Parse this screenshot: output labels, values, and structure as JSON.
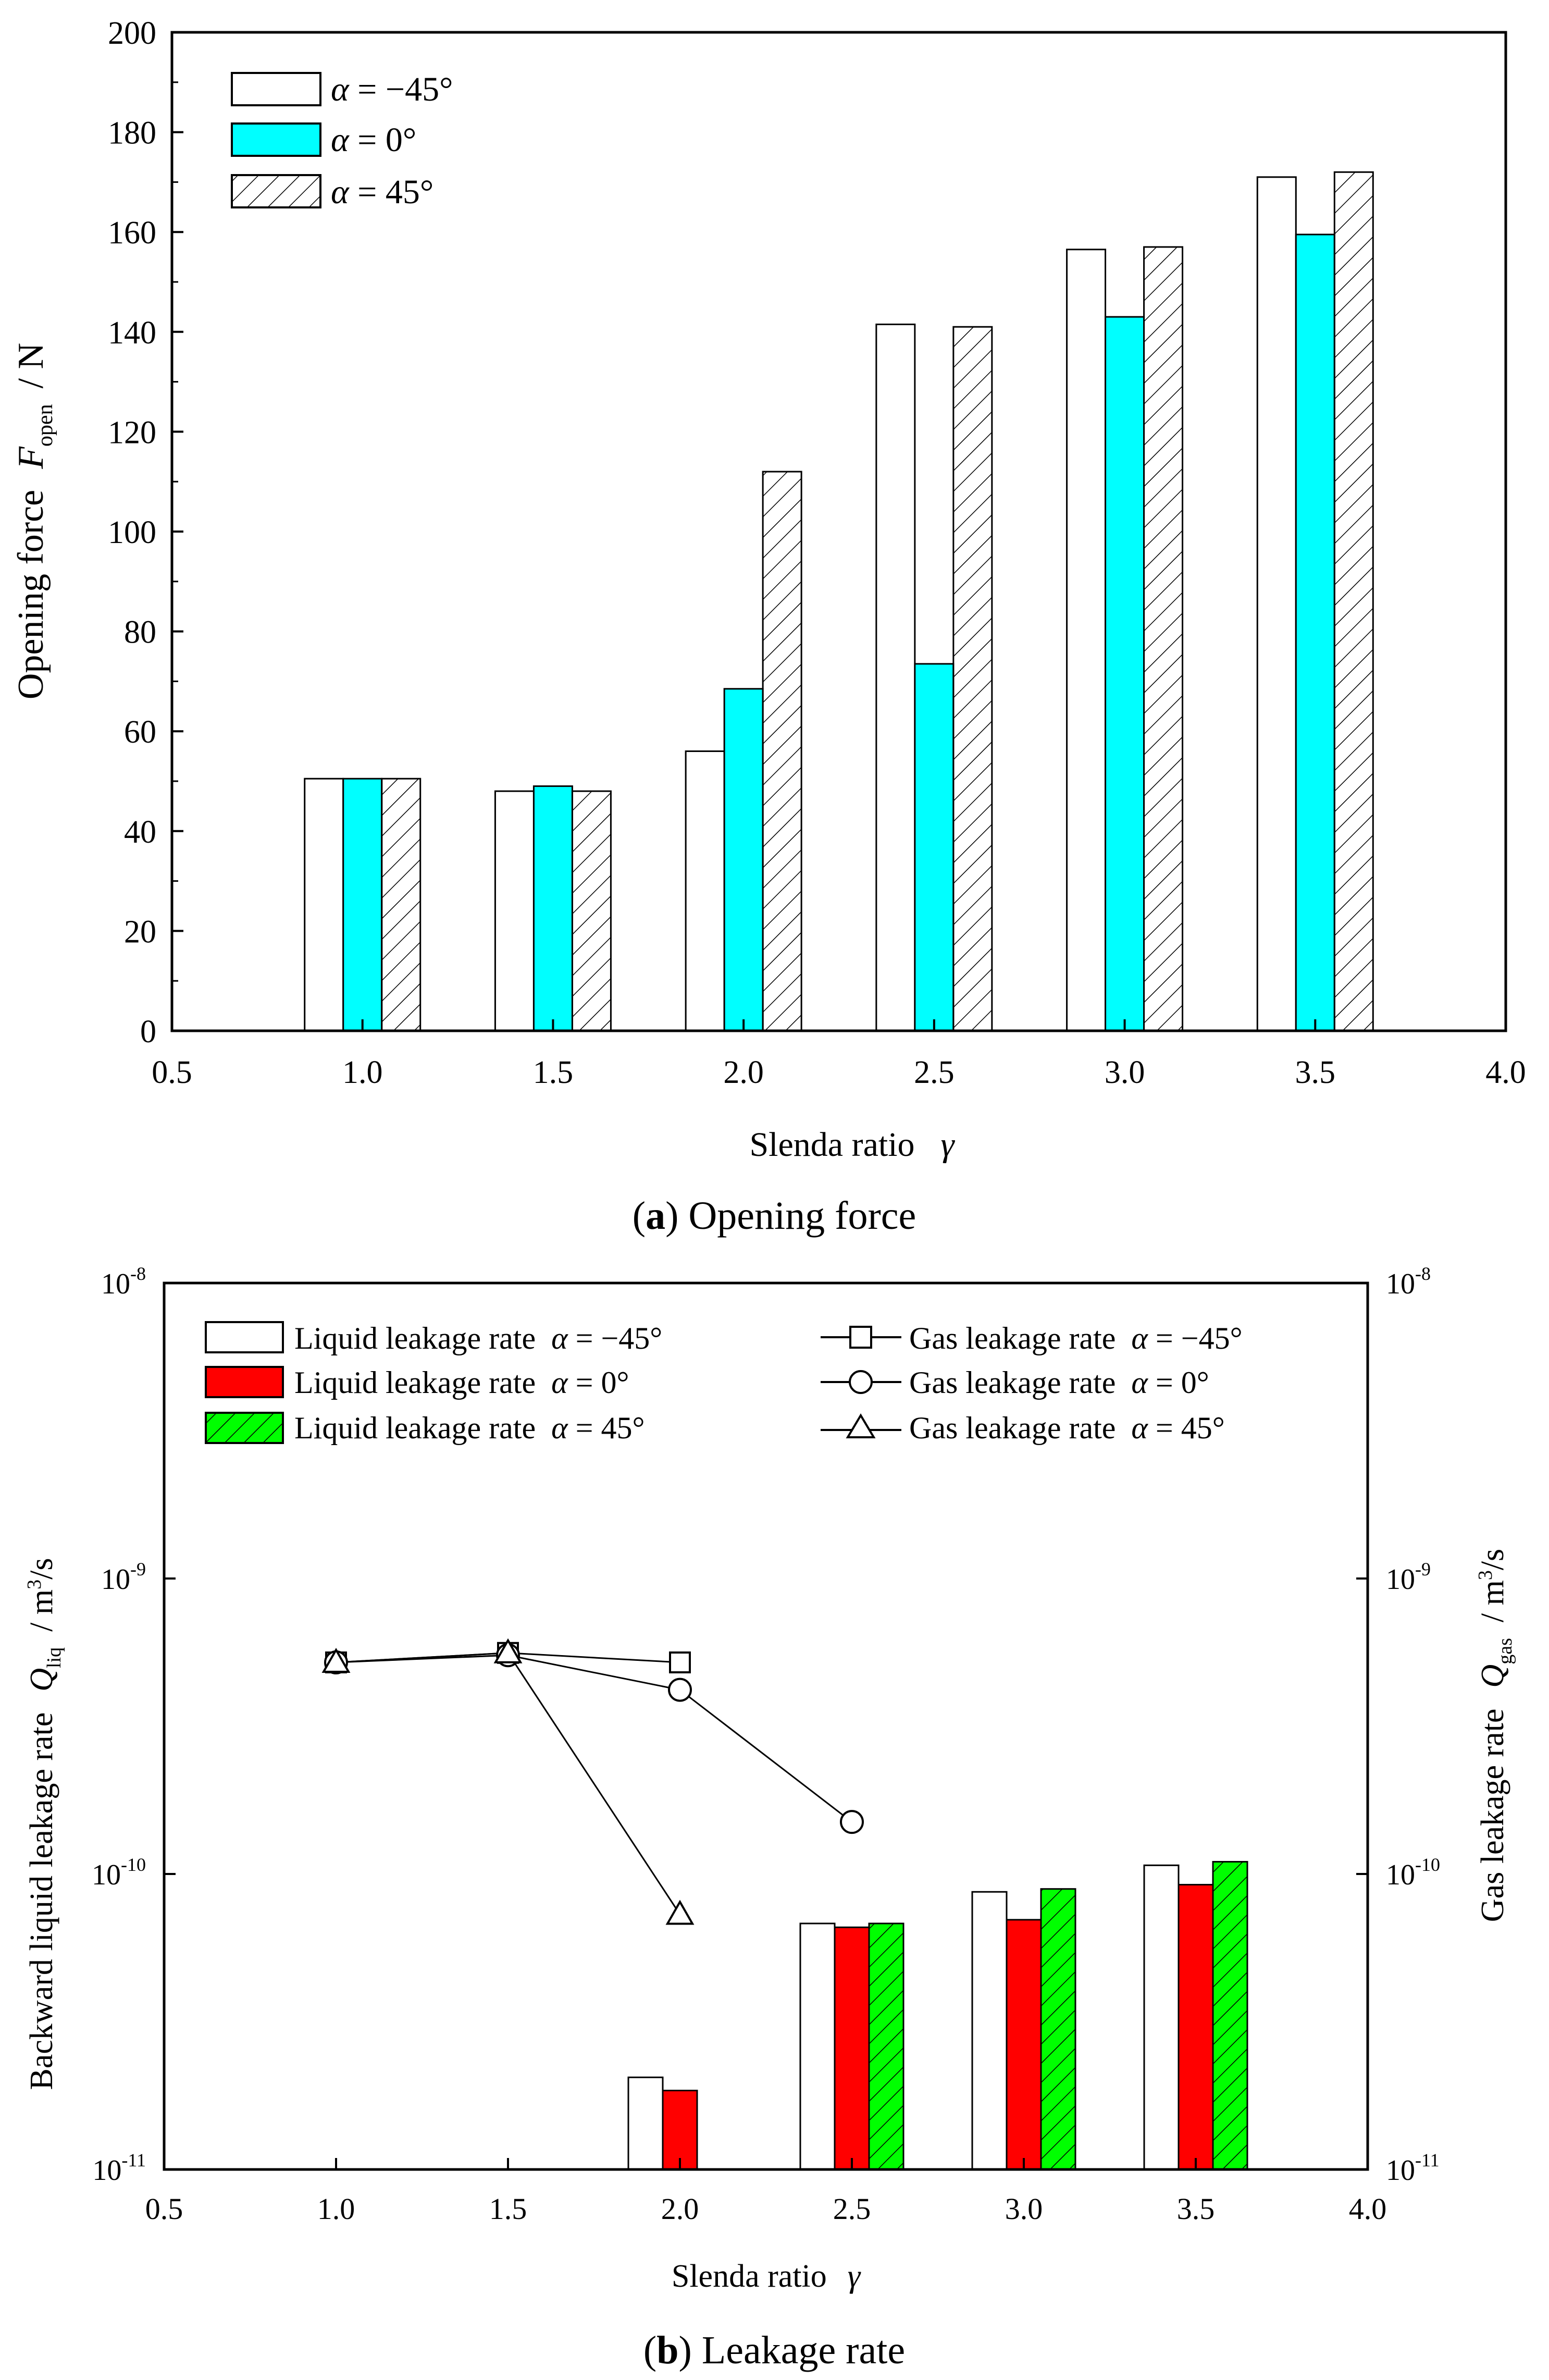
{
  "colors": {
    "alpha_0_a": "#00ffff",
    "alpha_0_b": "#ff0000",
    "alpha_45_b": "#00ff00",
    "axis": "#000000"
  },
  "chart_data": [
    {
      "id": "a",
      "type": "bar",
      "caption_letter": "a",
      "caption_text": ") Opening force",
      "caption_paren": "(",
      "xlabel": "Slenda ratio",
      "xlabel_symbol": "γ",
      "ylabel": "Opening force",
      "ylabel_symbol": "F",
      "ylabel_subscript": "open",
      "ylabel_unit": "/ N",
      "xlim": [
        0.5,
        4.0
      ],
      "ylim": [
        0,
        200
      ],
      "xticks": [
        "0.5",
        "1.0",
        "1.5",
        "2.0",
        "2.5",
        "3.0",
        "3.5",
        "4.0"
      ],
      "yticks": [
        "0",
        "20",
        "40",
        "60",
        "80",
        "100",
        "120",
        "140",
        "160",
        "180",
        "200"
      ],
      "categories": [
        1.0,
        1.5,
        2.0,
        2.5,
        3.0,
        3.5
      ],
      "series": [
        {
          "name": "α = −45°",
          "legend_symbol": "α",
          "legend_rest": " = −45°",
          "values": [
            50.5,
            48,
            56,
            141.5,
            156.5,
            171
          ]
        },
        {
          "name": "α = 0°",
          "legend_symbol": "α",
          "legend_rest": " = 0°",
          "values": [
            50.5,
            49,
            68.5,
            73.5,
            143,
            159.5
          ]
        },
        {
          "name": "α = 45°",
          "legend_symbol": "α",
          "legend_rest": " = 45°",
          "values": [
            50.5,
            48,
            112,
            141,
            157,
            172
          ]
        }
      ]
    },
    {
      "id": "b",
      "type": "bar+line",
      "caption_letter": "b",
      "caption_text": ") Leakage rate",
      "caption_paren": "(",
      "xlabel": "Slenda ratio",
      "xlabel_symbol": "γ",
      "ylabel_left": "Backward liquid leakage rate",
      "ylabel_left_symbol": "Q",
      "ylabel_left_subscript": "liq",
      "ylabel_right": "Gas leakage rate",
      "ylabel_right_symbol": "Q",
      "ylabel_right_subscript": "gas",
      "yunit": "/ m",
      "yunit_sup": "3",
      "yunit_tail": "/s",
      "yscale": "log",
      "xlim": [
        0.5,
        4.0
      ],
      "ylim": [
        1e-11,
        1e-08
      ],
      "xticks": [
        "0.5",
        "1.0",
        "1.5",
        "2.0",
        "2.5",
        "3.0",
        "3.5",
        "4.0"
      ],
      "yticks": [
        {
          "base": "10",
          "exp": "-11"
        },
        {
          "base": "10",
          "exp": "-10"
        },
        {
          "base": "10",
          "exp": "-9"
        },
        {
          "base": "10",
          "exp": "-8"
        }
      ],
      "bar_categories": [
        1.0,
        1.5,
        2.0,
        2.5,
        3.0,
        3.5
      ],
      "bar_series": [
        {
          "name": "Liquid leakage rate α = −45°",
          "legend_label": "Liquid leakage rate",
          "legend_symbol": "α",
          "legend_rest": " = −45°",
          "values": [
            null,
            null,
            2.05e-11,
            6.8e-11,
            8.7e-11,
            1.07e-10
          ]
        },
        {
          "name": "Liquid leakage rate α = 0°",
          "legend_label": "Liquid leakage rate",
          "legend_symbol": "α",
          "legend_rest": " = 0°",
          "values": [
            null,
            null,
            1.85e-11,
            6.6e-11,
            7e-11,
            9.2e-11
          ]
        },
        {
          "name": "Liquid leakage rate α = 45°",
          "legend_label": "Liquid leakage rate",
          "legend_symbol": "α",
          "legend_rest": " = 45°",
          "values": [
            null,
            null,
            null,
            6.8e-11,
            8.9e-11,
            1.1e-10
          ]
        }
      ],
      "line_series": [
        {
          "name": "Gas leakage rate α = −45°",
          "legend_label": "Gas leakage rate",
          "legend_symbol": "α",
          "legend_rest": " = −45°",
          "marker": "square",
          "x": [
            1.0,
            1.5,
            2.0
          ],
          "values": [
            5.2e-10,
            5.6e-10,
            5.2e-10
          ]
        },
        {
          "name": "Gas leakage rate α = 0°",
          "legend_label": "Gas leakage rate",
          "legend_symbol": "α",
          "legend_rest": " = 0°",
          "marker": "circle",
          "x": [
            1.0,
            1.5,
            2.0,
            2.5
          ],
          "values": [
            5.2e-10,
            5.5e-10,
            4.2e-10,
            1.5e-10
          ]
        },
        {
          "name": "Gas leakage rate α = 45°",
          "legend_label": "Gas leakage rate",
          "legend_symbol": "α",
          "legend_rest": " = 45°",
          "marker": "triangle",
          "x": [
            1.0,
            1.5,
            2.0
          ],
          "values": [
            5.2e-10,
            5.6e-10,
            7.3e-11
          ]
        }
      ]
    }
  ]
}
